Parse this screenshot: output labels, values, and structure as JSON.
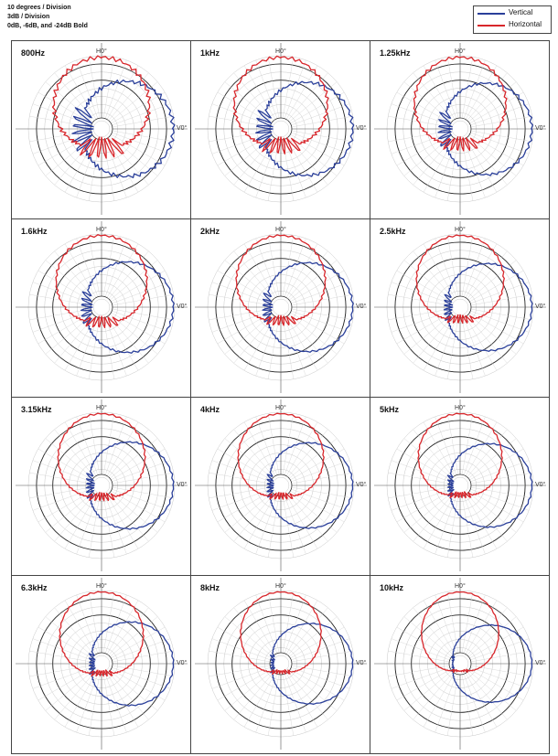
{
  "notes": [
    "10 degrees / Division",
    "3dB / Division",
    "0dB, -6dB, and -24dB Bold"
  ],
  "legend": [
    {
      "name": "Vertical",
      "color": "#2a3f9a"
    },
    {
      "name": "Horizontal",
      "color": "#d8262b"
    }
  ],
  "axis_labels": {
    "top": "H0°",
    "right": "V0°"
  },
  "chart_data": {
    "type": "polar",
    "angle_step_deg": 10,
    "db_per_division": 3,
    "bold_rings_db": [
      0,
      -6,
      -24
    ],
    "r_range_db": [
      -24,
      3
    ],
    "panels": [
      {
        "title": "800Hz",
        "series": [
          {
            "name": "Vertical",
            "shape": [
              0.25,
              0.55,
              0.85,
              1.0,
              0.15
            ],
            "spread": 80
          },
          {
            "name": "Horizontal",
            "shape": [
              0.25,
              0.55,
              0.85,
              1.0,
              0.15
            ],
            "spread": 80
          }
        ]
      },
      {
        "title": "1kHz",
        "series": [
          {
            "name": "Vertical",
            "shape": [
              0.22,
              0.55,
              0.86,
              1.0,
              0.12
            ],
            "spread": 78
          },
          {
            "name": "Horizontal",
            "shape": [
              0.22,
              0.55,
              0.86,
              1.0,
              0.12
            ],
            "spread": 78
          }
        ]
      },
      {
        "title": "1.25kHz",
        "series": [
          {
            "name": "Vertical",
            "shape": [
              0.2,
              0.52,
              0.85,
              1.0,
              0.1
            ],
            "spread": 76
          },
          {
            "name": "Horizontal",
            "shape": [
              0.2,
              0.52,
              0.85,
              1.0,
              0.1
            ],
            "spread": 76
          }
        ]
      },
      {
        "title": "1.6kHz",
        "series": [
          {
            "name": "Vertical",
            "shape": [
              0.2,
              0.5,
              0.84,
              1.0,
              0.08
            ],
            "spread": 74
          },
          {
            "name": "Horizontal",
            "shape": [
              0.2,
              0.5,
              0.84,
              1.0,
              0.08
            ],
            "spread": 74
          }
        ]
      },
      {
        "title": "2kHz",
        "series": [
          {
            "name": "Vertical",
            "shape": [
              0.18,
              0.48,
              0.83,
              1.0,
              0.07
            ],
            "spread": 72
          },
          {
            "name": "Horizontal",
            "shape": [
              0.18,
              0.48,
              0.83,
              1.0,
              0.07
            ],
            "spread": 72
          }
        ]
      },
      {
        "title": "2.5kHz",
        "series": [
          {
            "name": "Vertical",
            "shape": [
              0.16,
              0.46,
              0.82,
              1.0,
              0.06
            ],
            "spread": 70
          },
          {
            "name": "Horizontal",
            "shape": [
              0.16,
              0.46,
              0.82,
              1.0,
              0.06
            ],
            "spread": 70
          }
        ]
      },
      {
        "title": "3.15kHz",
        "series": [
          {
            "name": "Vertical",
            "shape": [
              0.15,
              0.45,
              0.82,
              1.0,
              0.06
            ],
            "spread": 70
          },
          {
            "name": "Horizontal",
            "shape": [
              0.15,
              0.45,
              0.82,
              1.0,
              0.06
            ],
            "spread": 70
          }
        ]
      },
      {
        "title": "4kHz",
        "series": [
          {
            "name": "Vertical",
            "shape": [
              0.14,
              0.44,
              0.81,
              1.0,
              0.05
            ],
            "spread": 68
          },
          {
            "name": "Horizontal",
            "shape": [
              0.14,
              0.44,
              0.81,
              1.0,
              0.05
            ],
            "spread": 68
          }
        ]
      },
      {
        "title": "5kHz",
        "series": [
          {
            "name": "Vertical",
            "shape": [
              0.12,
              0.42,
              0.8,
              1.0,
              0.05
            ],
            "spread": 66
          },
          {
            "name": "Horizontal",
            "shape": [
              0.12,
              0.42,
              0.8,
              1.0,
              0.05
            ],
            "spread": 66
          }
        ]
      },
      {
        "title": "6.3kHz",
        "series": [
          {
            "name": "Vertical",
            "shape": [
              0.12,
              0.42,
              0.8,
              1.0,
              0.05
            ],
            "spread": 66
          },
          {
            "name": "Horizontal",
            "shape": [
              0.12,
              0.42,
              0.8,
              1.0,
              0.05
            ],
            "spread": 66
          }
        ]
      },
      {
        "title": "8kHz",
        "series": [
          {
            "name": "Vertical",
            "shape": [
              0.1,
              0.4,
              0.78,
              1.0,
              0.04
            ],
            "spread": 62
          },
          {
            "name": "Horizontal",
            "shape": [
              0.1,
              0.4,
              0.78,
              1.0,
              0.04
            ],
            "spread": 62
          }
        ]
      },
      {
        "title": "10kHz",
        "series": [
          {
            "name": "Vertical",
            "shape": [
              0.08,
              0.38,
              0.76,
              1.0,
              0.03
            ],
            "spread": 58
          },
          {
            "name": "Horizontal",
            "shape": [
              0.08,
              0.38,
              0.76,
              1.0,
              0.03
            ],
            "spread": 58
          }
        ]
      }
    ]
  }
}
